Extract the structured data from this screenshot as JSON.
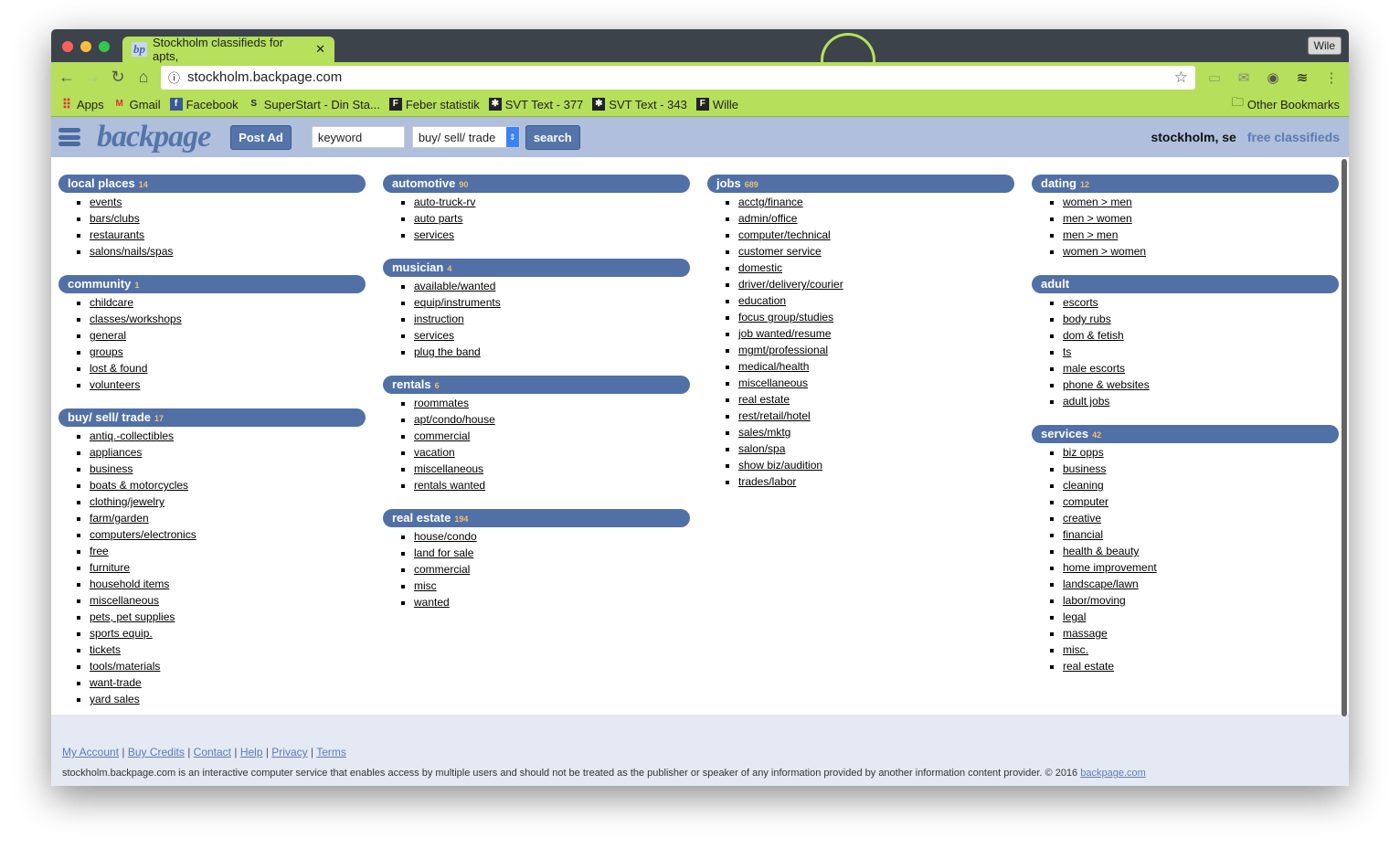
{
  "browser": {
    "tab_title": "Stockholm classifieds for apts,",
    "tab_favicon": "bp",
    "url": "stockholm.backpage.com",
    "profile": "Wile",
    "bookmarks": [
      {
        "label": "Apps",
        "icon": "apps-grid-icon"
      },
      {
        "label": "Gmail",
        "icon": "gmail-icon"
      },
      {
        "label": "Facebook",
        "icon": "facebook-icon"
      },
      {
        "label": "SuperStart - Din Sta...",
        "icon": "superstart-icon"
      },
      {
        "label": "Feber statistik",
        "icon": "feber-icon"
      },
      {
        "label": "SVT Text - 377",
        "icon": "svt-icon"
      },
      {
        "label": "SVT Text - 343",
        "icon": "svt-icon"
      },
      {
        "label": "Wille",
        "icon": "feber-icon"
      }
    ],
    "other_bookmarks": "Other Bookmarks"
  },
  "header": {
    "logo": "backpage",
    "post_ad": "Post Ad",
    "keyword_value": "keyword",
    "category_value": "buy/ sell/ trade",
    "search": "search",
    "location": "stockholm, se",
    "tagline": "free classifieds"
  },
  "colors": {
    "accent": "#5170a6",
    "header_bg": "#afbfdc",
    "footer_bg": "#e4e9f3",
    "count": "#f0c070"
  },
  "columns": [
    [
      {
        "title": "local places",
        "count": "14",
        "items": [
          "events",
          "bars/clubs",
          "restaurants",
          "salons/nails/spas"
        ]
      },
      {
        "title": "community",
        "count": "1",
        "items": [
          "childcare",
          "classes/workshops",
          "general",
          "groups",
          "lost & found",
          "volunteers"
        ]
      },
      {
        "title": "buy/ sell/ trade",
        "count": "17",
        "items": [
          "antiq.-collectibles",
          "appliances",
          "business",
          "boats & motorcycles",
          "clothing/jewelry",
          "farm/garden",
          "computers/electronics",
          "free",
          "furniture",
          "household items",
          "miscellaneous",
          "pets, pet supplies",
          "sports equip.",
          "tickets",
          "tools/materials",
          "want-trade",
          "yard sales"
        ]
      }
    ],
    [
      {
        "title": "automotive",
        "count": "90",
        "items": [
          "auto-truck-rv",
          "auto parts",
          "services"
        ]
      },
      {
        "title": "musician",
        "count": "4",
        "items": [
          "available/wanted",
          "equip/instruments",
          "instruction",
          "services",
          "plug the band"
        ]
      },
      {
        "title": "rentals",
        "count": "6",
        "items": [
          "roommates",
          "apt/condo/house",
          "commercial",
          "vacation",
          "miscellaneous",
          "rentals wanted"
        ]
      },
      {
        "title": "real estate",
        "count": "194",
        "items": [
          "house/condo",
          "land for sale",
          "commercial",
          "misc",
          "wanted"
        ]
      }
    ],
    [
      {
        "title": "jobs",
        "count": "689",
        "items": [
          "acctg/finance",
          "admin/office",
          "computer/technical",
          "customer service",
          "domestic",
          "driver/delivery/courier",
          "education",
          "focus group/studies",
          "job wanted/resume",
          "mgmt/professional",
          "medical/health",
          "miscellaneous",
          "real estate",
          "rest/retail/hotel",
          "sales/mktg",
          "salon/spa",
          "show biz/audition",
          "trades/labor"
        ]
      }
    ],
    [
      {
        "title": "dating",
        "count": "12",
        "items": [
          "women > men",
          "men > women",
          "men > men",
          "women > women"
        ]
      },
      {
        "title": "adult",
        "count": "",
        "items": [
          "escorts",
          "body rubs",
          "dom & fetish",
          "ts",
          "male escorts",
          "phone & websites",
          "adult jobs"
        ]
      },
      {
        "title": "services",
        "count": "42",
        "items": [
          "biz opps",
          "business",
          "cleaning",
          "computer",
          "creative",
          "financial",
          "health & beauty",
          "home improvement",
          "landscape/lawn",
          "labor/moving",
          "legal",
          "massage",
          "misc.",
          "real estate"
        ]
      }
    ]
  ],
  "footer": {
    "links": [
      "My Account",
      "Buy Credits",
      "Contact",
      "Help",
      "Privacy",
      "Terms"
    ],
    "disclaimer": "stockholm.backpage.com is an interactive computer service that enables access by multiple users and should not be treated as the publisher or speaker of any information provided by another information content provider. © 2016 ",
    "disclaimer_link": "backpage.com"
  }
}
